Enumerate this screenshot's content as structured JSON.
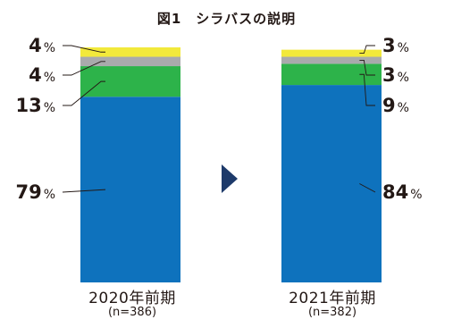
{
  "title": "図1　シラバスの説明",
  "chart_data": {
    "type": "bar",
    "stacked": true,
    "title": "図1　シラバスの説明",
    "unit": "%",
    "categories": [
      "2020年前期",
      "2021年前期"
    ],
    "sample_sizes": [
      "(n=386)",
      "(n=382)"
    ],
    "ylim": [
      0,
      100
    ],
    "series": [
      {
        "color": "#0e72bd",
        "values": [
          79,
          84
        ]
      },
      {
        "color": "#2db34a",
        "values": [
          13,
          9
        ]
      },
      {
        "color": "#a9aaac",
        "values": [
          4,
          3
        ]
      },
      {
        "color": "#f2e93b",
        "values": [
          4,
          3
        ]
      }
    ],
    "data_labels": [
      [
        "79",
        "13",
        "4",
        "4"
      ],
      [
        "84",
        "9",
        "3",
        "3"
      ]
    ],
    "arrow_color": "#1d3a6a",
    "legend": "none",
    "grid": false
  }
}
